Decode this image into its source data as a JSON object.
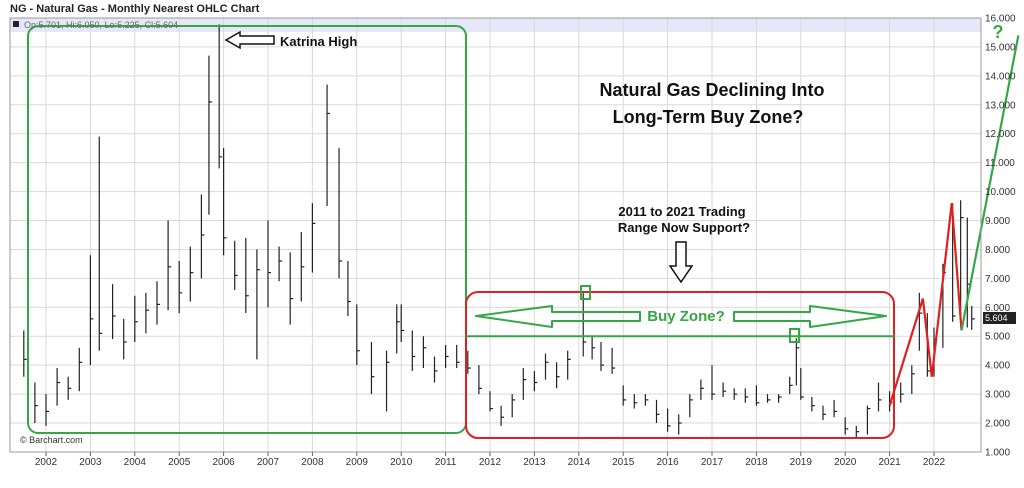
{
  "header": {
    "title": "NG - Natural Gas - Monthly Nearest OHLC Chart",
    "ohlc_readout": "Op:5.701, Hi:6.050, Lo:5.225, Cl:5.604"
  },
  "watermark": "© Barchart.com",
  "colors": {
    "bars": "#222222",
    "grid": "#d9d9d9",
    "green_box": "#33a845",
    "red_box": "#e0201e",
    "highlight_band": "#e6e8fa",
    "last_price_bg": "#222222"
  },
  "annotations": {
    "katrina": "Katrina High",
    "headline_1": "Natural Gas Declining Into",
    "headline_2": "Long-Term Buy Zone?",
    "range_1": "2011 to 2021 Trading",
    "range_2": "Range Now Support?",
    "buy_zone": "Buy Zone?",
    "question": "?"
  },
  "chart_data": {
    "type": "ohlc",
    "title": "NG - Natural Gas - Monthly Nearest OHLC Chart",
    "x_range": [
      "2001-06",
      "2022-12"
    ],
    "ylim": [
      1.0,
      16.0
    ],
    "y_ticks": [
      "1.000",
      "2.000",
      "3.000",
      "4.000",
      "5.000",
      "6.000",
      "7.000",
      "8.000",
      "9.000",
      "10.000",
      "11.000",
      "12.000",
      "13.000",
      "14.000",
      "15.000",
      "16.000"
    ],
    "x_ticks": [
      "2002",
      "2003",
      "2004",
      "2005",
      "2006",
      "2007",
      "2008",
      "2009",
      "2010",
      "2011",
      "2012",
      "2013",
      "2014",
      "2015",
      "2016",
      "2017",
      "2018",
      "2019",
      "2020",
      "2021",
      "2022"
    ],
    "last_price": "5.604",
    "support_level": 5.0,
    "series": [
      {
        "values": [
          {
            "x": 2001.5,
            "high": 5.2,
            "low": 3.6,
            "close": 4.2
          },
          {
            "x": 2001.75,
            "high": 3.4,
            "low": 2.0,
            "close": 2.6
          },
          {
            "x": 2002.0,
            "high": 3.0,
            "low": 1.9,
            "close": 2.4
          },
          {
            "x": 2002.25,
            "high": 3.9,
            "low": 2.6,
            "close": 3.4
          },
          {
            "x": 2002.5,
            "high": 3.6,
            "low": 2.8,
            "close": 3.2
          },
          {
            "x": 2002.75,
            "high": 4.6,
            "low": 3.1,
            "close": 4.1
          },
          {
            "x": 2003.0,
            "high": 7.8,
            "low": 4.0,
            "close": 5.6
          },
          {
            "x": 2003.2,
            "high": 11.9,
            "low": 4.5,
            "close": 5.1
          },
          {
            "x": 2003.5,
            "high": 6.8,
            "low": 4.9,
            "close": 5.7
          },
          {
            "x": 2003.75,
            "high": 5.6,
            "low": 4.2,
            "close": 4.8
          },
          {
            "x": 2004.0,
            "high": 6.4,
            "low": 4.8,
            "close": 5.5
          },
          {
            "x": 2004.25,
            "high": 6.5,
            "low": 5.1,
            "close": 5.9
          },
          {
            "x": 2004.5,
            "high": 6.9,
            "low": 5.4,
            "close": 6.1
          },
          {
            "x": 2004.75,
            "high": 9.0,
            "low": 5.9,
            "close": 7.4
          },
          {
            "x": 2005.0,
            "high": 7.6,
            "low": 5.8,
            "close": 6.5
          },
          {
            "x": 2005.25,
            "high": 8.1,
            "low": 6.2,
            "close": 7.2
          },
          {
            "x": 2005.5,
            "high": 9.9,
            "low": 7.0,
            "close": 8.5
          },
          {
            "x": 2005.67,
            "high": 14.7,
            "low": 9.2,
            "close": 13.1
          },
          {
            "x": 2005.9,
            "high": 15.78,
            "low": 10.8,
            "close": 11.2
          },
          {
            "x": 2006.0,
            "high": 11.5,
            "low": 7.8,
            "close": 8.4
          },
          {
            "x": 2006.25,
            "high": 8.3,
            "low": 6.6,
            "close": 7.1
          },
          {
            "x": 2006.5,
            "high": 8.4,
            "low": 5.8,
            "close": 6.4
          },
          {
            "x": 2006.75,
            "high": 8.0,
            "low": 4.2,
            "close": 7.3
          },
          {
            "x": 2007.0,
            "high": 9.0,
            "low": 6.0,
            "close": 7.2
          },
          {
            "x": 2007.25,
            "high": 8.1,
            "low": 6.9,
            "close": 7.6
          },
          {
            "x": 2007.5,
            "high": 7.9,
            "low": 5.4,
            "close": 6.3
          },
          {
            "x": 2007.75,
            "high": 8.6,
            "low": 6.2,
            "close": 7.4
          },
          {
            "x": 2008.0,
            "high": 9.6,
            "low": 7.2,
            "close": 8.9
          },
          {
            "x": 2008.33,
            "high": 13.7,
            "low": 9.5,
            "close": 12.7
          },
          {
            "x": 2008.6,
            "high": 11.5,
            "low": 7.0,
            "close": 7.6
          },
          {
            "x": 2008.8,
            "high": 7.6,
            "low": 5.7,
            "close": 6.2
          },
          {
            "x": 2009.0,
            "high": 6.1,
            "low": 4.0,
            "close": 4.5
          },
          {
            "x": 2009.33,
            "high": 4.8,
            "low": 3.0,
            "close": 3.6
          },
          {
            "x": 2009.67,
            "high": 4.5,
            "low": 2.4,
            "close": 4.1
          },
          {
            "x": 2009.9,
            "high": 6.1,
            "low": 4.4,
            "close": 5.5
          },
          {
            "x": 2010.0,
            "high": 6.1,
            "low": 4.8,
            "close": 5.2
          },
          {
            "x": 2010.25,
            "high": 5.2,
            "low": 3.8,
            "close": 4.3
          },
          {
            "x": 2010.5,
            "high": 5.0,
            "low": 3.9,
            "close": 4.6
          },
          {
            "x": 2010.75,
            "high": 4.3,
            "low": 3.4,
            "close": 3.8
          },
          {
            "x": 2011.0,
            "high": 4.7,
            "low": 3.9,
            "close": 4.3
          },
          {
            "x": 2011.25,
            "high": 4.7,
            "low": 3.9,
            "close": 4.1
          },
          {
            "x": 2011.5,
            "high": 4.5,
            "low": 3.7,
            "close": 3.9
          },
          {
            "x": 2011.75,
            "high": 4.0,
            "low": 3.0,
            "close": 3.2
          },
          {
            "x": 2012.0,
            "high": 3.1,
            "low": 2.4,
            "close": 2.5
          },
          {
            "x": 2012.25,
            "high": 2.6,
            "low": 1.9,
            "close": 2.2
          },
          {
            "x": 2012.5,
            "high": 3.0,
            "low": 2.2,
            "close": 2.8
          },
          {
            "x": 2012.75,
            "high": 3.9,
            "low": 2.8,
            "close": 3.5
          },
          {
            "x": 2013.0,
            "high": 3.8,
            "low": 3.1,
            "close": 3.4
          },
          {
            "x": 2013.25,
            "high": 4.4,
            "low": 3.5,
            "close": 4.1
          },
          {
            "x": 2013.5,
            "high": 4.1,
            "low": 3.2,
            "close": 3.6
          },
          {
            "x": 2013.75,
            "high": 4.5,
            "low": 3.5,
            "close": 4.2
          },
          {
            "x": 2014.1,
            "high": 6.49,
            "low": 4.3,
            "close": 4.8
          },
          {
            "x": 2014.3,
            "high": 5.0,
            "low": 4.2,
            "close": 4.6
          },
          {
            "x": 2014.5,
            "high": 4.8,
            "low": 3.8,
            "close": 4.0
          },
          {
            "x": 2014.75,
            "high": 4.6,
            "low": 3.7,
            "close": 3.9
          },
          {
            "x": 2015.0,
            "high": 3.3,
            "low": 2.6,
            "close": 2.8
          },
          {
            "x": 2015.25,
            "high": 3.0,
            "low": 2.5,
            "close": 2.7
          },
          {
            "x": 2015.5,
            "high": 3.0,
            "low": 2.6,
            "close": 2.8
          },
          {
            "x": 2015.75,
            "high": 2.8,
            "low": 2.0,
            "close": 2.3
          },
          {
            "x": 2016.0,
            "high": 2.5,
            "low": 1.7,
            "close": 1.9
          },
          {
            "x": 2016.25,
            "high": 2.3,
            "low": 1.6,
            "close": 2.0
          },
          {
            "x": 2016.5,
            "high": 3.0,
            "low": 2.2,
            "close": 2.8
          },
          {
            "x": 2016.75,
            "high": 3.5,
            "low": 2.8,
            "close": 3.2
          },
          {
            "x": 2017.0,
            "high": 4.0,
            "low": 2.8,
            "close": 3.0
          },
          {
            "x": 2017.25,
            "high": 3.4,
            "low": 2.9,
            "close": 3.1
          },
          {
            "x": 2017.5,
            "high": 3.2,
            "low": 2.8,
            "close": 3.0
          },
          {
            "x": 2017.75,
            "high": 3.2,
            "low": 2.7,
            "close": 2.9
          },
          {
            "x": 2018.0,
            "high": 3.3,
            "low": 2.6,
            "close": 2.7
          },
          {
            "x": 2018.25,
            "high": 3.0,
            "low": 2.7,
            "close": 2.8
          },
          {
            "x": 2018.5,
            "high": 3.0,
            "low": 2.7,
            "close": 2.9
          },
          {
            "x": 2018.75,
            "high": 3.6,
            "low": 3.0,
            "close": 3.3
          },
          {
            "x": 2018.9,
            "high": 4.93,
            "low": 3.3,
            "close": 4.6
          },
          {
            "x": 2019.0,
            "high": 3.9,
            "low": 2.8,
            "close": 2.9
          },
          {
            "x": 2019.25,
            "high": 2.9,
            "low": 2.4,
            "close": 2.6
          },
          {
            "x": 2019.5,
            "high": 2.6,
            "low": 2.1,
            "close": 2.3
          },
          {
            "x": 2019.75,
            "high": 2.8,
            "low": 2.2,
            "close": 2.4
          },
          {
            "x": 2020.0,
            "high": 2.2,
            "low": 1.6,
            "close": 1.8
          },
          {
            "x": 2020.25,
            "high": 1.9,
            "low": 1.5,
            "close": 1.7
          },
          {
            "x": 2020.5,
            "high": 2.6,
            "low": 1.6,
            "close": 2.5
          },
          {
            "x": 2020.75,
            "high": 3.4,
            "low": 2.4,
            "close": 2.8
          },
          {
            "x": 2021.0,
            "high": 3.1,
            "low": 2.4,
            "close": 2.7
          },
          {
            "x": 2021.25,
            "high": 3.4,
            "low": 2.7,
            "close": 3.0
          },
          {
            "x": 2021.5,
            "high": 4.0,
            "low": 3.0,
            "close": 3.7
          },
          {
            "x": 2021.67,
            "high": 6.5,
            "low": 4.5,
            "close": 5.8
          },
          {
            "x": 2021.85,
            "high": 5.8,
            "low": 3.6,
            "close": 3.8
          },
          {
            "x": 2022.0,
            "high": 5.3,
            "low": 3.6,
            "close": 4.9
          },
          {
            "x": 2022.2,
            "high": 7.5,
            "low": 4.6,
            "close": 7.2
          },
          {
            "x": 2022.42,
            "high": 9.6,
            "low": 5.5,
            "close": 5.7
          },
          {
            "x": 2022.6,
            "high": 9.7,
            "low": 5.5,
            "close": 9.1
          },
          {
            "x": 2022.75,
            "high": 9.1,
            "low": 5.3,
            "close": 6.8
          },
          {
            "x": 2022.85,
            "high": 6.05,
            "low": 5.22,
            "close": 5.6
          }
        ]
      }
    ]
  }
}
